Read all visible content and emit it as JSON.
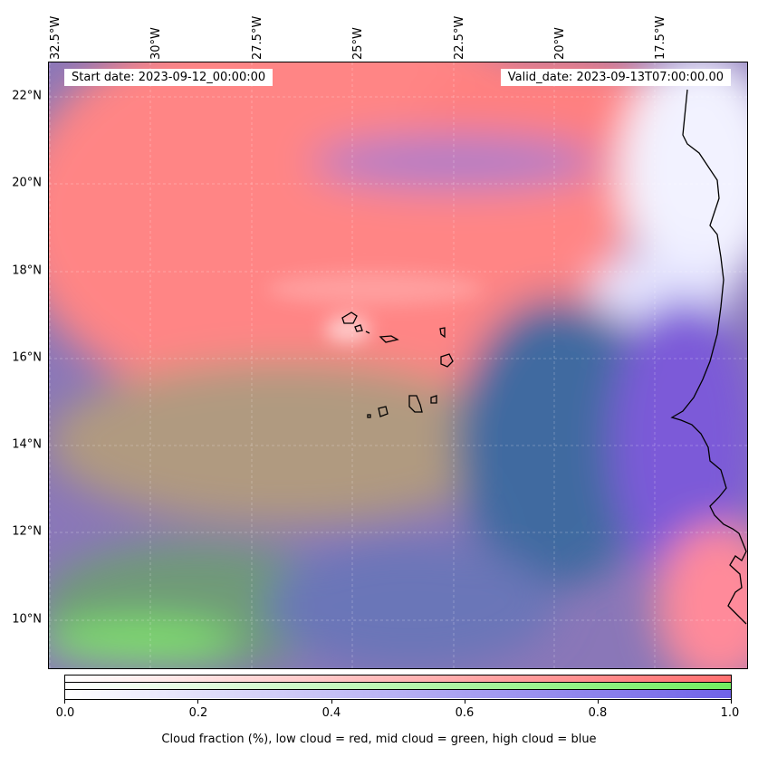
{
  "map": {
    "start_date": "Start date: 2023-09-12_00:00:00",
    "valid_date": "Valid_date: 2023-09-13T07:00:00.00",
    "lon_labels": [
      "32.5°W",
      "30°W",
      "27.5°W",
      "25°W",
      "22.5°W",
      "20°W",
      "17.5°W"
    ],
    "lat_labels": [
      "22°N",
      "20°N",
      "18°N",
      "16°N",
      "14°N",
      "12°N",
      "10°N"
    ],
    "colors": {
      "low_cloud": "#ff7f7f",
      "mid_cloud": "#7fe86a",
      "high_cloud": "#6a5ee0",
      "ocean_clear": "#3f6aa0",
      "coastline": "#000000"
    }
  },
  "colorbar": {
    "ticks": [
      "0.0",
      "0.2",
      "0.4",
      "0.6",
      "0.8",
      "1.0"
    ],
    "caption": "Cloud fraction (%), low cloud = red, mid cloud = green, high cloud = blue"
  }
}
